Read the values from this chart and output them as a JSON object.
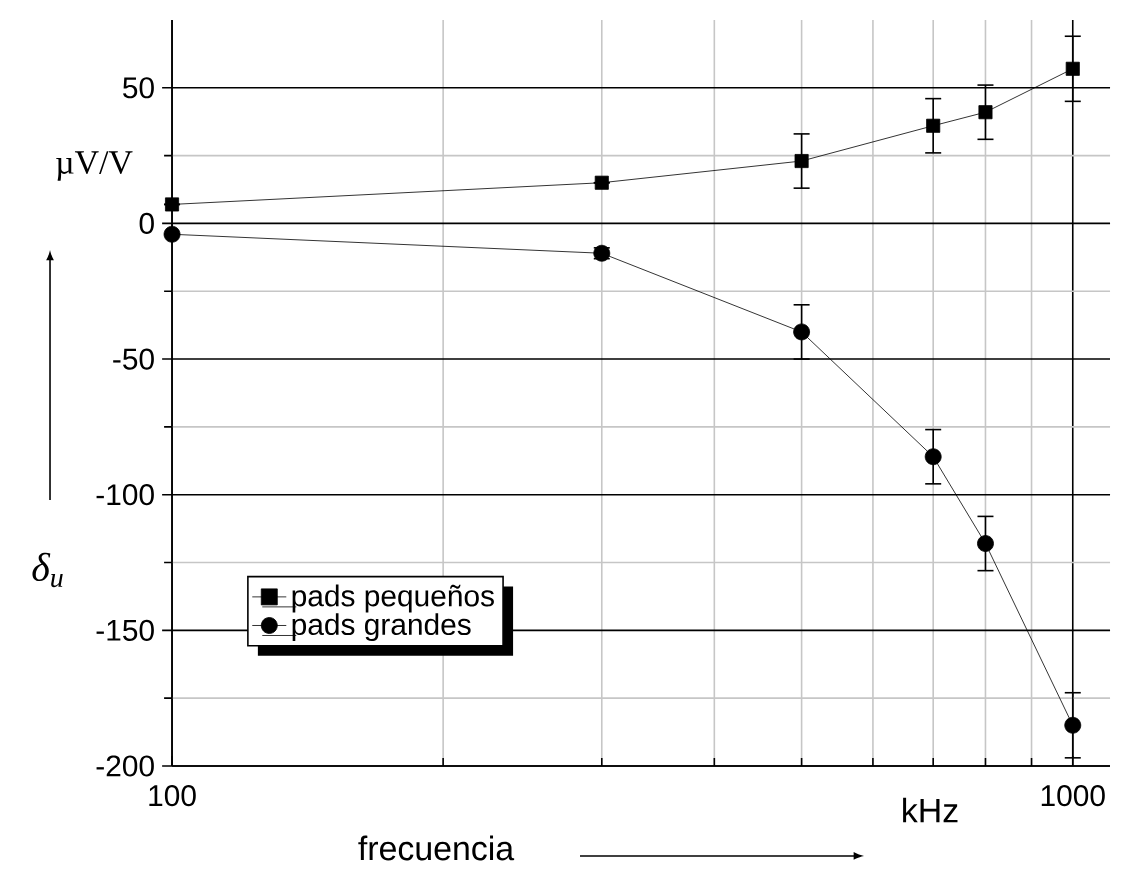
{
  "chart_data": {
    "type": "line",
    "xlabel": "frecuencia",
    "ylabel": "δ$_{u}$",
    "annotations": [
      "µV/V",
      "kHz"
    ],
    "log": "x",
    "grid": true,
    "legend": "bottom left",
    "xlim": [
      100,
      1100
    ],
    "ylim": [
      -200,
      75
    ],
    "xticks": [
      100,
      {
        "value": 200,
        "label": null
      },
      {
        "value": 300,
        "label": null
      },
      {
        "value": 400,
        "label": null
      },
      {
        "value": 500,
        "label": null
      },
      {
        "value": 600,
        "label": null
      },
      {
        "value": 700,
        "label": null
      },
      {
        "value": 800,
        "label": null
      },
      {
        "value": 900,
        "label": null
      },
      1000
    ],
    "yticks": [
      -200,
      {
        "value": -175,
        "label": null
      },
      -150,
      {
        "value": -125,
        "label": null
      },
      -100,
      {
        "value": -75,
        "label": null
      },
      -50,
      {
        "value": -25,
        "label": null
      },
      0,
      {
        "value": 25,
        "label": null
      },
      50
    ],
    "x": [
      100,
      300,
      500,
      700,
      800,
      1000
    ],
    "series": [
      {
        "name": "pads pequeños",
        "color": "#000000",
        "marker": "square",
        "values": [
          7,
          15,
          23,
          36,
          41,
          57
        ],
        "errors": [
          null,
          null,
          10,
          10,
          10,
          12
        ]
      },
      {
        "name": "pads grandes",
        "color": "#000000",
        "marker": "circle",
        "values": [
          -4,
          -11,
          -40,
          -86,
          -118,
          -185
        ],
        "errors": [
          null,
          2,
          10,
          10,
          10,
          12
        ]
      }
    ]
  }
}
